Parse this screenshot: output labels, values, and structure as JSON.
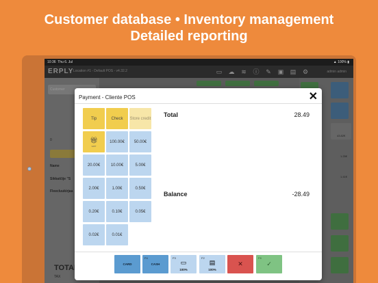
{
  "headline": {
    "line1": "Customer database • Inventory management",
    "line2": "Detailed reporting"
  },
  "status_bar": {
    "time": "10:36",
    "date": "Thu 6. Jul",
    "battery": "100%"
  },
  "app": {
    "logo": "ERPLY",
    "location": "Location #1 - Default POS - v4.32.2",
    "user": "admin admin"
  },
  "background_labels": {
    "customer_search": "Customer",
    "zero": "0",
    "name_col": "Name",
    "item1": "Sikkatčije \"S",
    "item2": "Fleecluukirjaa",
    "total": "TOTAL",
    "tax": "TAX",
    "price1": "43.82€",
    "price2": "1.25€",
    "price3": "1.41€"
  },
  "modal": {
    "title": "Payment - Cliente POS",
    "close_symbol": "✕",
    "grid": [
      {
        "label": "Tip",
        "style": "yellow"
      },
      {
        "label": "Check",
        "style": "yellow"
      },
      {
        "label": "Store credit",
        "style": "paleyellow"
      },
      {
        "label": "GIFT",
        "style": "yellow",
        "icon": "gift-icon"
      },
      {
        "label": "100.00€",
        "style": "blue"
      },
      {
        "label": "50.00€",
        "style": "blue"
      },
      {
        "label": "20.00€",
        "style": "blue"
      },
      {
        "label": "10.00€",
        "style": "blue"
      },
      {
        "label": "5.00€",
        "style": "blue"
      },
      {
        "label": "2.00€",
        "style": "blue"
      },
      {
        "label": "1.00€",
        "style": "blue"
      },
      {
        "label": "0.50€",
        "style": "blue"
      },
      {
        "label": "0.20€",
        "style": "blue"
      },
      {
        "label": "0.10€",
        "style": "blue"
      },
      {
        "label": "0.05€",
        "style": "blue"
      },
      {
        "label": "0.02€",
        "style": "blue"
      },
      {
        "label": "0.01€",
        "style": "blue"
      }
    ],
    "total_label": "Total",
    "total_value": "28.49",
    "balance_label": "Balance",
    "balance_value": "-28.49",
    "footer": [
      {
        "key": "",
        "label": "CARD",
        "icon": "",
        "color": "#5b9bd0"
      },
      {
        "key": "F4",
        "label": "CASH",
        "icon": "",
        "color": "#5b9bd0"
      },
      {
        "key": "F3",
        "label": "100%",
        "icon": "card-icon",
        "color": "#bcd6ef"
      },
      {
        "key": "F2",
        "label": "100%",
        "icon": "cash-notes-icon",
        "color": "#bcd6ef"
      },
      {
        "key": "",
        "label": "",
        "icon": "cancel-icon",
        "color": "#d9534f"
      },
      {
        "key": "F8",
        "label": "",
        "icon": "confirm-icon",
        "color": "#7fc383"
      }
    ]
  },
  "colors": {
    "background": "#ee8a3c",
    "yellow_button": "#f1cd4e",
    "blue_button": "#bcd6ef",
    "card_cash": "#5b9bd0",
    "cancel": "#d9534f",
    "confirm": "#7fc383"
  }
}
